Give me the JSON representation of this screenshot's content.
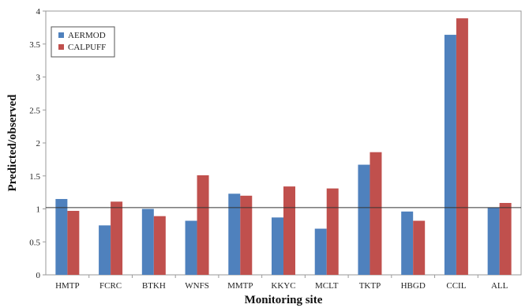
{
  "chart_data": {
    "type": "bar",
    "title": "",
    "xlabel": "Monitoring site",
    "ylabel": "Predicted/observed",
    "ylim": [
      0,
      4
    ],
    "yticks": [
      "0",
      "0.5",
      "1",
      "1.5",
      "2",
      "2.5",
      "3",
      "3.5",
      "4"
    ],
    "categories": [
      "HMTP",
      "FCRC",
      "BTKH",
      "WNFS",
      "MMTP",
      "KKYC",
      "MCLT",
      "TKTP",
      "HBGD",
      "CCIL",
      "ALL"
    ],
    "series": [
      {
        "name": "AERMOD",
        "color": "#4F81BD",
        "values": [
          1.15,
          0.75,
          1.0,
          0.82,
          1.23,
          0.87,
          0.7,
          1.67,
          0.96,
          3.64,
          1.02
        ]
      },
      {
        "name": "CALPUFF",
        "color": "#C0504D",
        "values": [
          0.97,
          1.11,
          0.89,
          1.51,
          1.2,
          1.34,
          1.31,
          1.86,
          0.82,
          3.89,
          1.09
        ]
      }
    ],
    "reference_line": 1.02,
    "legend_position": "top-left",
    "grid": false
  }
}
